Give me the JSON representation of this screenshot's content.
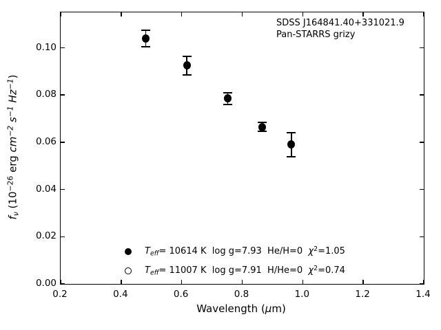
{
  "chart_data": {
    "type": "scatter",
    "title": "",
    "annotation_lines": [
      "SDSS J164841.40+331021.9",
      "Pan-STARRS grizy"
    ],
    "xlabel_plain": "Wavelength (μm)",
    "ylabel_plain": "fν (10⁻²⁶ erg cm⁻² s⁻¹ Hz⁻¹)",
    "xlabel_segments": [
      {
        "t": "Wavelength ("
      },
      {
        "t": "μ",
        "style": "i"
      },
      {
        "t": "m)"
      }
    ],
    "ylabel_segments": [
      {
        "t": "f",
        "style": "i"
      },
      {
        "t": "ν",
        "style": "isub"
      },
      {
        "t": " (10"
      },
      {
        "t": "−26",
        "style": "sup"
      },
      {
        "t": " erg "
      },
      {
        "t": "cm",
        "style": "i"
      },
      {
        "t": "−2",
        "style": "isup"
      },
      {
        "t": " "
      },
      {
        "t": "s",
        "style": "i"
      },
      {
        "t": "−1",
        "style": "isup"
      },
      {
        "t": " "
      },
      {
        "t": "Hz",
        "style": "i"
      },
      {
        "t": "−1",
        "style": "isup"
      },
      {
        "t": ")"
      }
    ],
    "xlim": [
      0.2,
      1.4
    ],
    "ylim": [
      0,
      0.115
    ],
    "xticks": [
      "0.2",
      "0.4",
      "0.6",
      "0.8",
      "1.0",
      "1.2",
      "1.4"
    ],
    "yticks": [
      "0.00",
      "0.02",
      "0.04",
      "0.06",
      "0.08",
      "0.10"
    ],
    "grid": false,
    "marker_color": "#000000",
    "series": [
      {
        "name": "Teff= 10614 K  log g=7.93  He/H=0  χ²=1.05",
        "marker": "filled-circle",
        "x": [
          0.481,
          0.617,
          0.752,
          0.866,
          0.962
        ],
        "y": [
          0.104,
          0.0925,
          0.0785,
          0.0665,
          0.059
        ],
        "yerr": [
          0.0035,
          0.004,
          0.0025,
          0.002,
          0.005
        ]
      }
    ],
    "legend": {
      "position": "lower-left-inside",
      "entries": [
        {
          "marker": "filled-circle",
          "label_plain": "Teff= 10614 K  log g=7.93  He/H=0  χ²=1.05",
          "segments": [
            {
              "t": "T",
              "style": "i"
            },
            {
              "t": "eff",
              "style": "isub"
            },
            {
              "t": "= 10614 K  log g=7.93  He/H=0  "
            },
            {
              "t": "χ",
              "style": "i"
            },
            {
              "t": "2",
              "style": "sup"
            },
            {
              "t": "=1.05"
            }
          ]
        },
        {
          "marker": "open-circle",
          "label_plain": "Teff= 11007 K  log g=7.91  H/He=0  χ²=0.74",
          "segments": [
            {
              "t": "T",
              "style": "i"
            },
            {
              "t": "eff",
              "style": "isub"
            },
            {
              "t": "= 11007 K  log g=7.91  H/He=0  "
            },
            {
              "t": "χ",
              "style": "i"
            },
            {
              "t": "2",
              "style": "sup"
            },
            {
              "t": "=0.74"
            }
          ]
        }
      ]
    }
  }
}
